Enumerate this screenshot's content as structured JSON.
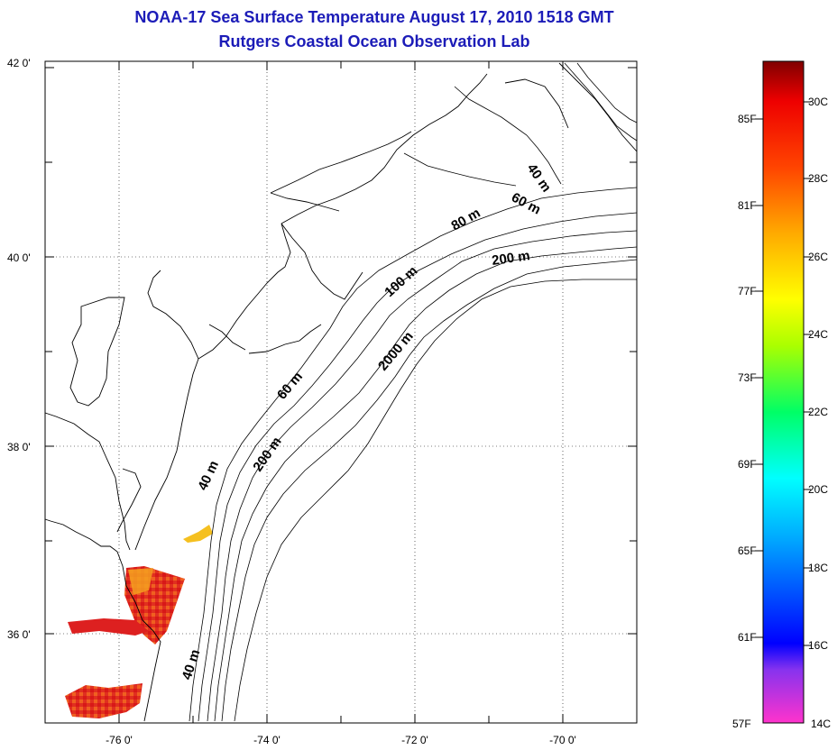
{
  "title": {
    "line1": "NOAA-17 Sea Surface Temperature August 17, 2010 1518 GMT",
    "line2": "Rutgers Coastal Ocean Observation Lab"
  },
  "axes": {
    "lat_labels": [
      "42 0'",
      "40 0'",
      "38 0'",
      "36 0'"
    ],
    "lon_labels": [
      "-76 0'",
      "-74 0'",
      "-72 0'",
      "-70 0'"
    ]
  },
  "contour_labels": [
    "40 m",
    "60 m",
    "80 m",
    "200 m",
    "100 m",
    "2000 m",
    "60 m",
    "200 m",
    "40 m",
    "40 m"
  ],
  "colorbar": {
    "f_labels": [
      "85F",
      "81F",
      "77F",
      "73F",
      "69F",
      "65F",
      "61F",
      "57F"
    ],
    "c_labels": [
      "30C",
      "28C",
      "26C",
      "24C",
      "22C",
      "20C",
      "18C",
      "16C",
      "14C"
    ],
    "colors": [
      "#ff33cc",
      "#8833ee",
      "#0000ff",
      "#00aaff",
      "#00ffff",
      "#00ff66",
      "#aaff00",
      "#ffff00",
      "#ffaa00",
      "#ff4400",
      "#ee0000",
      "#800000"
    ]
  },
  "sst_colors": {
    "warm": "#e22020",
    "orange": "#f07020",
    "yellow": "#f5d000"
  }
}
